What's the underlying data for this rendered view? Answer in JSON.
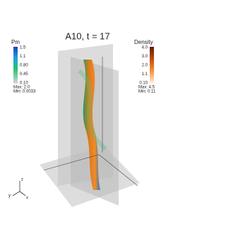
{
  "title": "A10, t = 17",
  "left_colorbar": {
    "title": "Pm",
    "labels": [
      "1.5",
      "1.1",
      "0.80",
      "0.45",
      "0.10"
    ],
    "max": "Max: 2.0",
    "min": "Min: 0.0033"
  },
  "right_colorbar": {
    "title": "Density",
    "labels": [
      "4.0",
      "3.0",
      "2.0",
      "1.1",
      "0.10"
    ],
    "max": "Max: 4.5",
    "min": "Min: 0.11"
  },
  "axes_triad": {
    "z": "z",
    "y": "y",
    "x": "x"
  }
}
